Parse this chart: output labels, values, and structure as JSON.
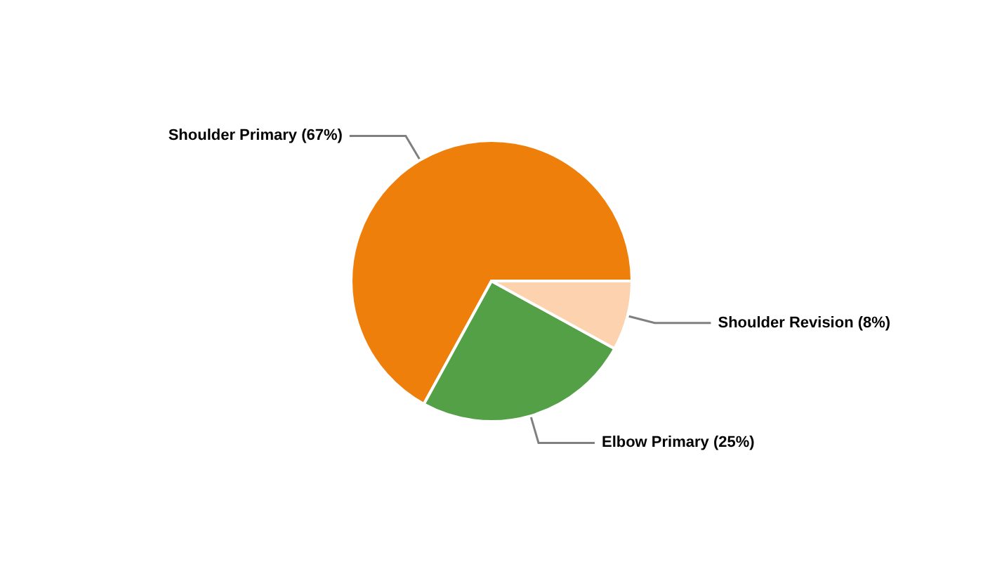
{
  "chart_data": {
    "type": "pie",
    "categories": [
      "Shoulder Primary",
      "Elbow Primary",
      "Shoulder Revision"
    ],
    "values": [
      67,
      25,
      8
    ],
    "value_labels": [
      "(67%)",
      "(25%)",
      "(8%)"
    ],
    "colors": [
      "#ef7f0b",
      "#53a046",
      "#fcd3ae"
    ],
    "legend": false
  }
}
